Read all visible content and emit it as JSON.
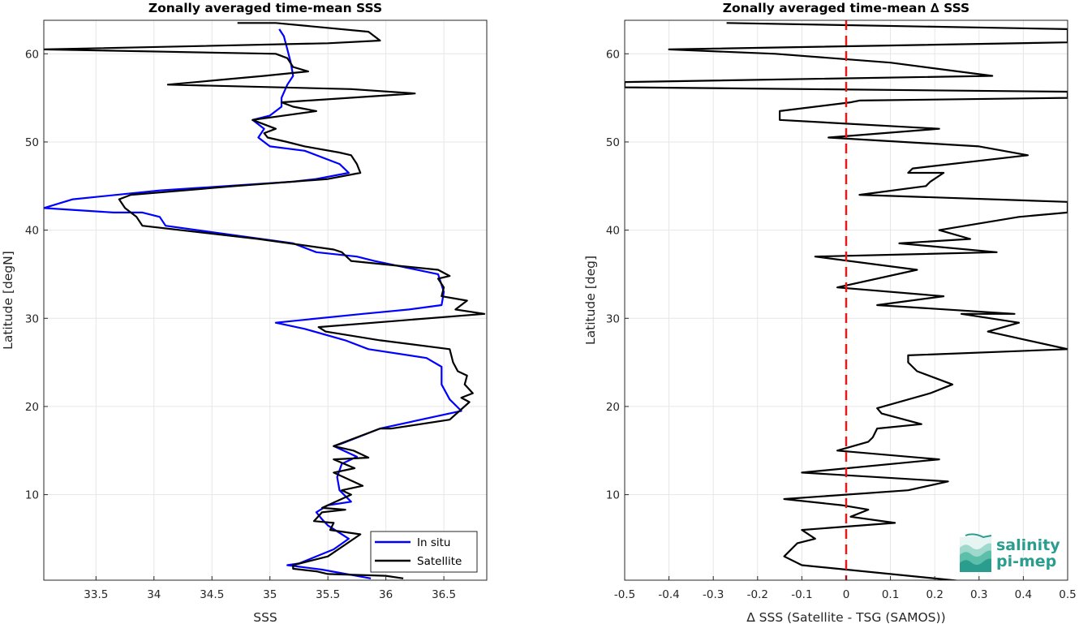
{
  "chart_data": [
    {
      "type": "line",
      "title": "Zonally averaged time-mean SSS",
      "xlabel": "SSS",
      "ylabel": "Latitude [degN]",
      "xlim": [
        33.05,
        36.87
      ],
      "ylim": [
        0.3,
        63.8
      ],
      "xticks": [
        33.5,
        34,
        34.5,
        35,
        35.5,
        36,
        36.5
      ],
      "xtick_labels": [
        "33.5",
        "34",
        "34.5",
        "35",
        "35.5",
        "36",
        "36.5"
      ],
      "yticks": [
        10,
        20,
        30,
        40,
        50,
        60
      ],
      "ytick_labels": [
        "10",
        "20",
        "30",
        "40",
        "50",
        "60"
      ],
      "grid": true,
      "legend_position": "bottom-right",
      "series": [
        {
          "name": "In situ",
          "color": "#0000ff",
          "points": [
            [
              35.87,
              0.5
            ],
            [
              35.45,
              1.5
            ],
            [
              35.15,
              2.0
            ],
            [
              35.25,
              2.2
            ],
            [
              35.55,
              3.8
            ],
            [
              35.68,
              5.0
            ],
            [
              35.5,
              6.5
            ],
            [
              35.45,
              7.2
            ],
            [
              35.4,
              8.0
            ],
            [
              35.5,
              8.8
            ],
            [
              35.7,
              9.2
            ],
            [
              35.6,
              10.5
            ],
            [
              35.58,
              12.0
            ],
            [
              35.62,
              13.5
            ],
            [
              35.75,
              14.3
            ],
            [
              35.55,
              15.5
            ],
            [
              35.62,
              15.8
            ],
            [
              35.95,
              17.5
            ],
            [
              36.65,
              19.5
            ],
            [
              36.55,
              20.8
            ],
            [
              36.48,
              22.5
            ],
            [
              36.48,
              24.5
            ],
            [
              36.35,
              25.5
            ],
            [
              35.85,
              26.5
            ],
            [
              35.65,
              27.5
            ],
            [
              35.3,
              28.8
            ],
            [
              35.05,
              29.5
            ],
            [
              35.8,
              30.5
            ],
            [
              36.2,
              31.0
            ],
            [
              36.48,
              31.5
            ],
            [
              36.5,
              33.0
            ],
            [
              36.45,
              35.0
            ],
            [
              35.9,
              36.5
            ],
            [
              35.75,
              37.0
            ],
            [
              35.4,
              37.5
            ],
            [
              35.2,
              38.5
            ],
            [
              34.1,
              40.5
            ],
            [
              34.05,
              41.5
            ],
            [
              33.9,
              42.0
            ],
            [
              33.65,
              42.0
            ],
            [
              33.05,
              42.5
            ],
            [
              33.3,
              43.5
            ],
            [
              34.05,
              44.5
            ],
            [
              35.2,
              45.5
            ],
            [
              35.4,
              45.8
            ],
            [
              35.68,
              46.5
            ],
            [
              35.6,
              47.5
            ],
            [
              35.3,
              49.0
            ],
            [
              35.0,
              49.5
            ],
            [
              34.9,
              50.5
            ],
            [
              34.95,
              51.5
            ],
            [
              34.85,
              52.5
            ],
            [
              35.0,
              53.0
            ],
            [
              35.1,
              54.0
            ],
            [
              35.1,
              55.0
            ],
            [
              35.15,
              56.5
            ],
            [
              35.2,
              57.5
            ],
            [
              35.18,
              59.0
            ],
            [
              35.15,
              60.5
            ],
            [
              35.12,
              62.0
            ],
            [
              35.08,
              62.8
            ]
          ]
        },
        {
          "name": "Satellite",
          "color": "#000000",
          "points": [
            [
              36.15,
              0.5
            ],
            [
              36.0,
              0.8
            ],
            [
              35.5,
              1.0
            ],
            [
              35.4,
              1.3
            ],
            [
              35.2,
              1.6
            ],
            [
              35.2,
              2.0
            ],
            [
              35.5,
              3.0
            ],
            [
              35.78,
              5.5
            ],
            [
              35.52,
              6.0
            ],
            [
              35.55,
              6.8
            ],
            [
              35.38,
              7.0
            ],
            [
              35.45,
              8.0
            ],
            [
              35.65,
              8.3
            ],
            [
              35.45,
              8.5
            ],
            [
              35.7,
              10.0
            ],
            [
              35.62,
              10.5
            ],
            [
              35.8,
              11.0
            ],
            [
              35.55,
              12.5
            ],
            [
              35.73,
              13.0
            ],
            [
              35.55,
              14.0
            ],
            [
              35.85,
              14.2
            ],
            [
              35.72,
              15.0
            ],
            [
              35.55,
              15.5
            ],
            [
              35.95,
              17.5
            ],
            [
              36.05,
              17.5
            ],
            [
              36.55,
              18.5
            ],
            [
              36.72,
              20.5
            ],
            [
              36.65,
              21.0
            ],
            [
              36.75,
              21.5
            ],
            [
              36.68,
              22.5
            ],
            [
              36.7,
              23.5
            ],
            [
              36.62,
              24.0
            ],
            [
              36.58,
              25.0
            ],
            [
              36.55,
              26.5
            ],
            [
              35.95,
              27.5
            ],
            [
              35.48,
              28.5
            ],
            [
              35.42,
              29.0
            ],
            [
              36.85,
              30.5
            ],
            [
              36.6,
              31.0
            ],
            [
              36.7,
              32.0
            ],
            [
              36.48,
              32.5
            ],
            [
              36.5,
              33.5
            ],
            [
              36.45,
              34.5
            ],
            [
              36.55,
              34.8
            ],
            [
              36.45,
              35.5
            ],
            [
              35.7,
              36.5
            ],
            [
              35.62,
              37.5
            ],
            [
              35.55,
              37.8
            ],
            [
              34.9,
              39.0
            ],
            [
              33.9,
              40.5
            ],
            [
              33.85,
              41.5
            ],
            [
              33.75,
              42.5
            ],
            [
              33.7,
              43.5
            ],
            [
              33.8,
              44.0
            ],
            [
              34.7,
              45.0
            ],
            [
              35.5,
              45.8
            ],
            [
              35.78,
              46.5
            ],
            [
              35.75,
              47.5
            ],
            [
              35.7,
              48.5
            ],
            [
              35.6,
              48.8
            ],
            [
              35.3,
              49.5
            ],
            [
              35.15,
              50.0
            ],
            [
              34.98,
              50.5
            ],
            [
              34.95,
              51.0
            ],
            [
              35.05,
              51.5
            ],
            [
              34.85,
              52.5
            ],
            [
              35.4,
              53.5
            ],
            [
              35.2,
              54.0
            ],
            [
              35.1,
              54.5
            ],
            [
              36.25,
              55.5
            ],
            [
              35.7,
              56.0
            ],
            [
              34.12,
              56.5
            ],
            [
              34.95,
              57.5
            ],
            [
              35.33,
              58.0
            ],
            [
              35.2,
              58.5
            ],
            [
              35.15,
              59.5
            ],
            [
              35.05,
              60.0
            ],
            [
              33.05,
              60.5
            ],
            [
              35.5,
              61.2
            ],
            [
              35.95,
              61.5
            ],
            [
              35.85,
              62.5
            ],
            [
              35.05,
              63.5
            ],
            [
              34.72,
              63.5
            ]
          ]
        }
      ]
    },
    {
      "type": "line",
      "title": "Zonally averaged time-mean ∆ SSS",
      "xlabel": "∆ SSS (Satellite - TSG (SAMOS))",
      "ylabel": "Latitude [deg]",
      "xlim": [
        -0.5,
        0.5
      ],
      "ylim": [
        0.3,
        63.8
      ],
      "xticks": [
        -0.5,
        -0.4,
        -0.3,
        -0.2,
        -0.1,
        0,
        0.1,
        0.2,
        0.3,
        0.4,
        0.5
      ],
      "xtick_labels": [
        "-0.5",
        "-0.4",
        "-0.3",
        "-0.2",
        "-0.1",
        "0",
        "0.1",
        "0.2",
        "0.3",
        "0.4",
        "0.5"
      ],
      "yticks": [
        10,
        20,
        30,
        40,
        50,
        60
      ],
      "ytick_labels": [
        "10",
        "20",
        "30",
        "40",
        "50",
        "60"
      ],
      "grid": true,
      "reference_line": {
        "x": 0,
        "color": "#e31a1c",
        "style": "dashed"
      },
      "series": [
        {
          "color": "#000000",
          "points": [
            [
              0.26,
              0.2
            ],
            [
              -0.1,
              2.0
            ],
            [
              -0.14,
              3.0
            ],
            [
              -0.11,
              4.5
            ],
            [
              -0.07,
              5.0
            ],
            [
              -0.1,
              6.0
            ],
            [
              0.11,
              6.8
            ],
            [
              0.01,
              7.5
            ],
            [
              0.05,
              8.3
            ],
            [
              -0.01,
              8.8
            ],
            [
              -0.14,
              9.5
            ],
            [
              0.14,
              10.5
            ],
            [
              0.23,
              11.5
            ],
            [
              -0.1,
              12.5
            ],
            [
              0.21,
              14.0
            ],
            [
              -0.02,
              15.0
            ],
            [
              0.05,
              16.0
            ],
            [
              0.06,
              16.5
            ],
            [
              0.07,
              17.5
            ],
            [
              0.17,
              18.0
            ],
            [
              0.08,
              19.2
            ],
            [
              0.07,
              19.8
            ],
            [
              0.19,
              21.5
            ],
            [
              0.24,
              22.5
            ],
            [
              0.16,
              24.0
            ],
            [
              0.14,
              25.0
            ],
            [
              0.14,
              25.8
            ],
            [
              0.5,
              26.5
            ],
            [
              0.32,
              28.5
            ],
            [
              0.39,
              29.5
            ],
            [
              0.26,
              30.5
            ],
            [
              0.38,
              30.5
            ],
            [
              0.07,
              31.5
            ],
            [
              0.22,
              32.5
            ],
            [
              -0.02,
              33.5
            ],
            [
              0.16,
              35.5
            ],
            [
              -0.07,
              37.0
            ],
            [
              0.34,
              37.5
            ],
            [
              0.12,
              38.5
            ],
            [
              0.28,
              39.0
            ],
            [
              0.21,
              40.0
            ],
            [
              0.39,
              41.5
            ],
            [
              0.5,
              42.0
            ],
            [
              0.5,
              43.2
            ],
            [
              0.03,
              44.0
            ],
            [
              0.18,
              45.0
            ],
            [
              0.19,
              45.5
            ],
            [
              0.22,
              46.5
            ],
            [
              0.14,
              46.5
            ],
            [
              0.15,
              47.0
            ],
            [
              0.41,
              48.5
            ],
            [
              0.3,
              49.5
            ],
            [
              -0.04,
              50.5
            ],
            [
              0.21,
              51.5
            ],
            [
              -0.15,
              52.5
            ],
            [
              -0.15,
              53.5
            ],
            [
              0.01,
              54.5
            ],
            [
              0.03,
              54.7
            ],
            [
              0.5,
              55.0
            ],
            [
              0.5,
              55.7
            ],
            [
              -0.5,
              56.2
            ],
            [
              -0.5,
              56.8
            ],
            [
              0.33,
              57.5
            ],
            [
              0.1,
              59.0
            ],
            [
              -0.16,
              60.0
            ],
            [
              -0.4,
              60.5
            ],
            [
              0.5,
              61.3
            ],
            [
              0.5,
              62.8
            ],
            [
              -0.27,
              63.5
            ]
          ]
        }
      ]
    }
  ],
  "legend": {
    "items": [
      {
        "label": "In situ",
        "color": "#0000ff"
      },
      {
        "label": "Satellite",
        "color": "#000000"
      }
    ]
  },
  "logo": {
    "line1": "salinity",
    "line2": "pi-mep",
    "color": "#2a9d8f"
  }
}
